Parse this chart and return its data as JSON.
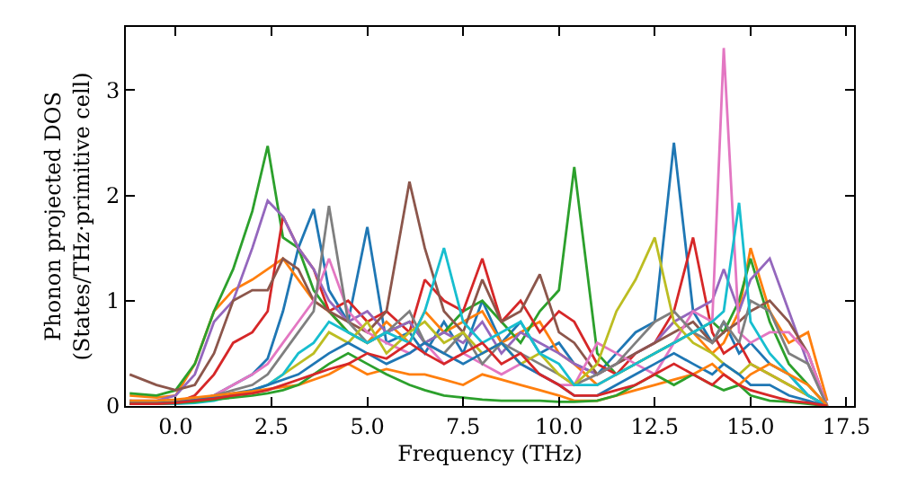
{
  "chart_data": {
    "type": "line",
    "xlabel": "Frequency (THz)",
    "ylabel": "Phonon projected DOS\n(States/THz·primitive cell)",
    "xlim": [
      -1.3,
      17.7
    ],
    "ylim": [
      0,
      3.6
    ],
    "xticks": [
      {
        "value": 0,
        "label": "0.0"
      },
      {
        "value": 2.5,
        "label": "2.5"
      },
      {
        "value": 5,
        "label": "5.0"
      },
      {
        "value": 7.5,
        "label": "7.5"
      },
      {
        "value": 10,
        "label": "10.0"
      },
      {
        "value": 12.5,
        "label": "12.5"
      },
      {
        "value": 15,
        "label": "15.0"
      },
      {
        "value": 17.5,
        "label": "17.5"
      }
    ],
    "yticks": [
      0,
      1,
      2,
      3
    ],
    "line_style": "solid",
    "marker": "none",
    "x": [
      -1.2,
      -0.5,
      0,
      0.5,
      1,
      1.5,
      2,
      2.4,
      2.8,
      3.2,
      3.6,
      4,
      4.5,
      5,
      5.5,
      6.1,
      6.5,
      7,
      7.5,
      8,
      8.5,
      9,
      9.5,
      10,
      10.4,
      11,
      11.5,
      12,
      12.5,
      13,
      13.5,
      14,
      14.3,
      14.7,
      15,
      15.5,
      16,
      16.5,
      17
    ],
    "series": [
      {
        "color": "#1f77b4",
        "values": [
          0.05,
          0.03,
          0.03,
          0.05,
          0.1,
          0.2,
          0.3,
          0.45,
          0.9,
          1.5,
          1.87,
          1.1,
          0.8,
          1.7,
          0.6,
          0.7,
          0.5,
          0.8,
          0.5,
          1.0,
          0.6,
          0.8,
          0.5,
          0.6,
          0.4,
          0.3,
          0.5,
          0.7,
          0.8,
          2.5,
          0.9,
          0.6,
          0.8,
          0.5,
          0.6,
          0.4,
          0.3,
          0.1,
          0.0
        ]
      },
      {
        "color": "#ff7f0e",
        "values": [
          0.1,
          0.08,
          0.1,
          0.4,
          0.9,
          1.1,
          1.2,
          1.3,
          1.4,
          1.2,
          1.0,
          0.9,
          0.7,
          0.6,
          0.8,
          0.6,
          0.9,
          0.7,
          0.8,
          0.9,
          0.6,
          0.7,
          0.8,
          0.5,
          0.4,
          0.2,
          0.3,
          0.4,
          0.5,
          0.6,
          0.7,
          0.5,
          0.6,
          0.9,
          1.5,
          0.9,
          0.6,
          0.7,
          0.05
        ]
      },
      {
        "color": "#2ca02c",
        "values": [
          0.12,
          0.1,
          0.15,
          0.4,
          0.9,
          1.3,
          1.85,
          2.47,
          1.6,
          1.5,
          1.1,
          0.9,
          0.7,
          0.6,
          0.7,
          0.8,
          0.6,
          0.7,
          0.9,
          1.0,
          0.8,
          0.6,
          0.9,
          1.1,
          2.27,
          0.5,
          0.3,
          0.4,
          0.5,
          0.6,
          0.7,
          0.8,
          0.7,
          1.0,
          1.4,
          0.8,
          0.4,
          0.2,
          0.0
        ]
      },
      {
        "color": "#d62728",
        "values": [
          0.02,
          0.02,
          0.03,
          0.1,
          0.3,
          0.6,
          0.7,
          0.9,
          1.8,
          1.5,
          1.3,
          0.9,
          1.0,
          0.8,
          0.9,
          0.7,
          1.2,
          1.0,
          0.9,
          1.4,
          0.8,
          1.0,
          0.7,
          0.9,
          0.8,
          0.4,
          0.3,
          0.5,
          0.6,
          0.9,
          1.6,
          0.7,
          0.5,
          0.6,
          0.4,
          0.3,
          0.2,
          0.1,
          0.0
        ]
      },
      {
        "color": "#9467bd",
        "values": [
          0.05,
          0.05,
          0.1,
          0.3,
          0.8,
          1.0,
          1.5,
          1.95,
          1.8,
          1.5,
          1.3,
          1.0,
          0.8,
          0.9,
          0.7,
          0.8,
          0.6,
          0.7,
          0.6,
          0.8,
          0.5,
          0.7,
          0.6,
          0.5,
          0.4,
          0.3,
          0.4,
          0.5,
          0.6,
          0.8,
          0.9,
          1.0,
          1.3,
          0.9,
          1.2,
          1.4,
          0.9,
          0.4,
          0.0
        ]
      },
      {
        "color": "#8c564b",
        "values": [
          0.3,
          0.2,
          0.15,
          0.2,
          0.5,
          1.0,
          1.1,
          1.1,
          1.4,
          1.3,
          1.0,
          0.9,
          0.8,
          0.7,
          0.9,
          2.13,
          1.5,
          0.9,
          0.7,
          1.2,
          0.8,
          0.9,
          1.25,
          0.7,
          0.6,
          0.3,
          0.4,
          0.5,
          0.6,
          0.7,
          0.8,
          0.6,
          0.7,
          0.8,
          0.9,
          1.0,
          0.8,
          0.5,
          0.0
        ]
      },
      {
        "color": "#e377c2",
        "values": [
          0.02,
          0.02,
          0.03,
          0.05,
          0.1,
          0.2,
          0.3,
          0.4,
          0.6,
          0.8,
          1.0,
          1.4,
          0.9,
          0.7,
          0.6,
          0.5,
          0.6,
          0.4,
          0.5,
          0.4,
          0.3,
          0.4,
          0.3,
          0.2,
          0.2,
          0.6,
          0.5,
          0.4,
          0.3,
          0.6,
          0.9,
          0.8,
          3.4,
          0.7,
          0.6,
          0.7,
          0.7,
          0.5,
          0.0
        ]
      },
      {
        "color": "#7f7f7f",
        "values": [
          0.02,
          0.02,
          0.03,
          0.05,
          0.1,
          0.15,
          0.2,
          0.3,
          0.5,
          0.7,
          0.9,
          1.9,
          0.8,
          0.6,
          0.7,
          0.9,
          0.6,
          0.5,
          0.7,
          0.4,
          0.6,
          0.5,
          0.4,
          0.3,
          0.2,
          0.3,
          0.4,
          0.6,
          0.8,
          0.9,
          0.7,
          0.6,
          0.8,
          0.6,
          1.0,
          0.9,
          0.5,
          0.4,
          0.0
        ]
      },
      {
        "color": "#bcbd22",
        "values": [
          null,
          null,
          null,
          null,
          null,
          null,
          null,
          0.2,
          0.3,
          0.4,
          0.5,
          0.7,
          0.6,
          0.8,
          0.5,
          0.7,
          0.8,
          0.6,
          0.7,
          0.5,
          0.6,
          0.4,
          0.5,
          0.3,
          0.2,
          0.4,
          0.9,
          1.2,
          1.6,
          0.8,
          0.6,
          0.5,
          0.4,
          0.3,
          0.4,
          0.3,
          0.2,
          0.1,
          0.0
        ]
      },
      {
        "color": "#17becf",
        "values": [
          0.02,
          0.02,
          0.02,
          0.03,
          0.05,
          0.1,
          0.15,
          0.2,
          0.3,
          0.5,
          0.6,
          0.8,
          0.7,
          0.6,
          0.7,
          0.6,
          0.9,
          1.5,
          0.8,
          0.6,
          0.7,
          0.8,
          0.5,
          0.4,
          0.2,
          0.2,
          0.3,
          0.4,
          0.5,
          0.6,
          0.7,
          0.8,
          0.9,
          1.93,
          0.8,
          0.5,
          0.3,
          0.1,
          0.0
        ]
      },
      {
        "color": "#1f77b4",
        "values": [
          0.03,
          0.03,
          0.04,
          0.06,
          0.08,
          0.12,
          0.15,
          0.2,
          0.25,
          0.3,
          0.4,
          0.5,
          0.6,
          0.5,
          0.4,
          0.5,
          0.6,
          0.5,
          0.4,
          0.5,
          0.6,
          0.4,
          0.3,
          0.2,
          0.1,
          0.1,
          0.2,
          0.3,
          0.4,
          0.5,
          0.4,
          0.3,
          0.4,
          0.3,
          0.2,
          0.2,
          0.1,
          0.05,
          0.0
        ]
      },
      {
        "color": "#ff7f0e",
        "values": [
          0.05,
          0.05,
          0.06,
          0.08,
          0.1,
          0.12,
          0.14,
          0.16,
          0.18,
          0.2,
          0.25,
          0.3,
          0.4,
          0.3,
          0.35,
          0.3,
          0.3,
          0.25,
          0.2,
          0.3,
          0.25,
          0.2,
          0.15,
          0.1,
          0.05,
          0.05,
          0.1,
          0.15,
          0.2,
          0.25,
          0.3,
          0.4,
          0.3,
          0.2,
          0.3,
          0.4,
          0.3,
          0.2,
          0.0
        ]
      },
      {
        "color": "#2ca02c",
        "values": [
          0.02,
          0.02,
          0.03,
          0.04,
          0.06,
          0.08,
          0.1,
          0.12,
          0.15,
          0.2,
          0.3,
          0.4,
          0.5,
          0.4,
          0.3,
          0.2,
          0.15,
          0.1,
          0.08,
          0.06,
          0.05,
          0.05,
          0.05,
          0.04,
          0.04,
          0.05,
          0.1,
          0.2,
          0.3,
          0.2,
          0.3,
          0.2,
          0.15,
          0.2,
          0.1,
          0.05,
          0.04,
          0.02,
          0.0
        ]
      },
      {
        "color": "#d62728",
        "values": [
          0.02,
          0.02,
          0.03,
          0.05,
          0.07,
          0.1,
          0.12,
          0.15,
          0.2,
          0.25,
          0.3,
          0.35,
          0.4,
          0.5,
          0.45,
          0.6,
          0.5,
          0.4,
          0.5,
          0.6,
          0.4,
          0.5,
          0.3,
          0.2,
          0.1,
          0.1,
          0.15,
          0.2,
          0.3,
          0.4,
          0.3,
          0.2,
          0.3,
          0.2,
          0.15,
          0.1,
          0.05,
          0.03,
          0.0
        ]
      }
    ]
  }
}
